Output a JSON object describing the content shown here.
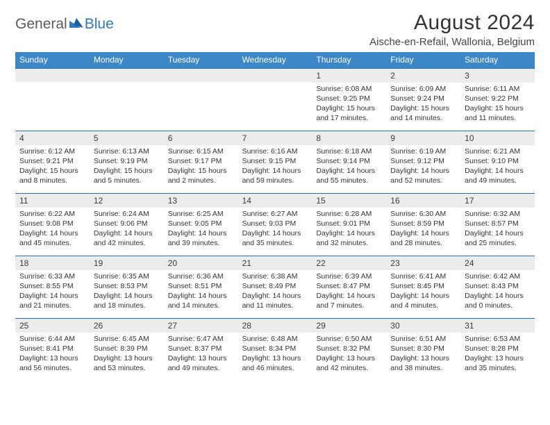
{
  "logo": {
    "text1": "General",
    "text2": "Blue"
  },
  "title": "August 2024",
  "location": "Aische-en-Refail, Wallonia, Belgium",
  "colors": {
    "header_bg": "#3b87c8",
    "header_text": "#ffffff",
    "rule": "#2b6fa7",
    "daynum_bg": "#ececec",
    "body_text": "#333333"
  },
  "weekdays": [
    "Sunday",
    "Monday",
    "Tuesday",
    "Wednesday",
    "Thursday",
    "Friday",
    "Saturday"
  ],
  "leading_blanks": 4,
  "days": [
    {
      "n": "1",
      "sunrise": "6:08 AM",
      "sunset": "9:25 PM",
      "daylight": "15 hours and 17 minutes."
    },
    {
      "n": "2",
      "sunrise": "6:09 AM",
      "sunset": "9:24 PM",
      "daylight": "15 hours and 14 minutes."
    },
    {
      "n": "3",
      "sunrise": "6:11 AM",
      "sunset": "9:22 PM",
      "daylight": "15 hours and 11 minutes."
    },
    {
      "n": "4",
      "sunrise": "6:12 AM",
      "sunset": "9:21 PM",
      "daylight": "15 hours and 8 minutes."
    },
    {
      "n": "5",
      "sunrise": "6:13 AM",
      "sunset": "9:19 PM",
      "daylight": "15 hours and 5 minutes."
    },
    {
      "n": "6",
      "sunrise": "6:15 AM",
      "sunset": "9:17 PM",
      "daylight": "15 hours and 2 minutes."
    },
    {
      "n": "7",
      "sunrise": "6:16 AM",
      "sunset": "9:15 PM",
      "daylight": "14 hours and 59 minutes."
    },
    {
      "n": "8",
      "sunrise": "6:18 AM",
      "sunset": "9:14 PM",
      "daylight": "14 hours and 55 minutes."
    },
    {
      "n": "9",
      "sunrise": "6:19 AM",
      "sunset": "9:12 PM",
      "daylight": "14 hours and 52 minutes."
    },
    {
      "n": "10",
      "sunrise": "6:21 AM",
      "sunset": "9:10 PM",
      "daylight": "14 hours and 49 minutes."
    },
    {
      "n": "11",
      "sunrise": "6:22 AM",
      "sunset": "9:08 PM",
      "daylight": "14 hours and 45 minutes."
    },
    {
      "n": "12",
      "sunrise": "6:24 AM",
      "sunset": "9:06 PM",
      "daylight": "14 hours and 42 minutes."
    },
    {
      "n": "13",
      "sunrise": "6:25 AM",
      "sunset": "9:05 PM",
      "daylight": "14 hours and 39 minutes."
    },
    {
      "n": "14",
      "sunrise": "6:27 AM",
      "sunset": "9:03 PM",
      "daylight": "14 hours and 35 minutes."
    },
    {
      "n": "15",
      "sunrise": "6:28 AM",
      "sunset": "9:01 PM",
      "daylight": "14 hours and 32 minutes."
    },
    {
      "n": "16",
      "sunrise": "6:30 AM",
      "sunset": "8:59 PM",
      "daylight": "14 hours and 28 minutes."
    },
    {
      "n": "17",
      "sunrise": "6:32 AM",
      "sunset": "8:57 PM",
      "daylight": "14 hours and 25 minutes."
    },
    {
      "n": "18",
      "sunrise": "6:33 AM",
      "sunset": "8:55 PM",
      "daylight": "14 hours and 21 minutes."
    },
    {
      "n": "19",
      "sunrise": "6:35 AM",
      "sunset": "8:53 PM",
      "daylight": "14 hours and 18 minutes."
    },
    {
      "n": "20",
      "sunrise": "6:36 AM",
      "sunset": "8:51 PM",
      "daylight": "14 hours and 14 minutes."
    },
    {
      "n": "21",
      "sunrise": "6:38 AM",
      "sunset": "8:49 PM",
      "daylight": "14 hours and 11 minutes."
    },
    {
      "n": "22",
      "sunrise": "6:39 AM",
      "sunset": "8:47 PM",
      "daylight": "14 hours and 7 minutes."
    },
    {
      "n": "23",
      "sunrise": "6:41 AM",
      "sunset": "8:45 PM",
      "daylight": "14 hours and 4 minutes."
    },
    {
      "n": "24",
      "sunrise": "6:42 AM",
      "sunset": "8:43 PM",
      "daylight": "14 hours and 0 minutes."
    },
    {
      "n": "25",
      "sunrise": "6:44 AM",
      "sunset": "8:41 PM",
      "daylight": "13 hours and 56 minutes."
    },
    {
      "n": "26",
      "sunrise": "6:45 AM",
      "sunset": "8:39 PM",
      "daylight": "13 hours and 53 minutes."
    },
    {
      "n": "27",
      "sunrise": "6:47 AM",
      "sunset": "8:37 PM",
      "daylight": "13 hours and 49 minutes."
    },
    {
      "n": "28",
      "sunrise": "6:48 AM",
      "sunset": "8:34 PM",
      "daylight": "13 hours and 46 minutes."
    },
    {
      "n": "29",
      "sunrise": "6:50 AM",
      "sunset": "8:32 PM",
      "daylight": "13 hours and 42 minutes."
    },
    {
      "n": "30",
      "sunrise": "6:51 AM",
      "sunset": "8:30 PM",
      "daylight": "13 hours and 38 minutes."
    },
    {
      "n": "31",
      "sunrise": "6:53 AM",
      "sunset": "8:28 PM",
      "daylight": "13 hours and 35 minutes."
    }
  ],
  "labels": {
    "sunrise": "Sunrise:",
    "sunset": "Sunset:",
    "daylight": "Daylight:"
  }
}
